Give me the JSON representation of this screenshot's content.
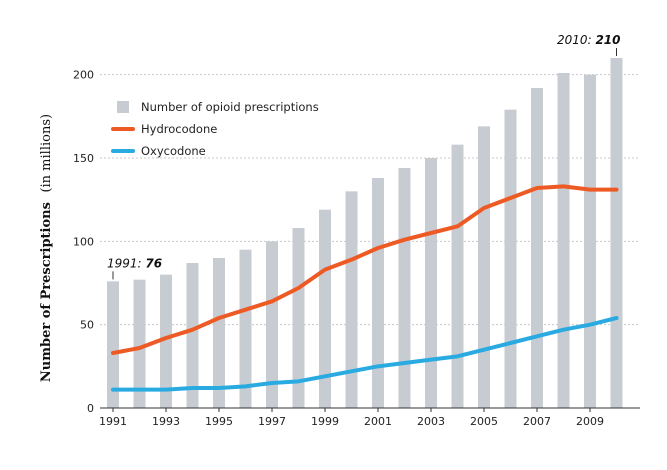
{
  "chart_data": {
    "type": "bar",
    "ylabel": "Number of Prescriptions",
    "ylabel_suffix": "(in millions)",
    "xlabel": "",
    "ylim": [
      0,
      210
    ],
    "yticks": [
      0,
      50,
      100,
      150,
      200
    ],
    "x": [
      1991,
      1992,
      1993,
      1994,
      1995,
      1996,
      1997,
      1998,
      1999,
      2000,
      2001,
      2002,
      2003,
      2004,
      2005,
      2006,
      2007,
      2008,
      2009,
      2010
    ],
    "xtick_labels": [
      "1991",
      "1993",
      "1995",
      "1997",
      "1999",
      "2001",
      "2003",
      "2005",
      "2007",
      "2009"
    ],
    "series": [
      {
        "name": "Number of opioid prescriptions",
        "kind": "bar",
        "color": "#c7ccd3",
        "values": [
          76,
          77,
          80,
          87,
          90,
          95,
          100,
          108,
          119,
          130,
          138,
          144,
          150,
          158,
          169,
          179,
          192,
          201,
          200,
          210
        ]
      },
      {
        "name": "Hydrocodone",
        "kind": "line",
        "color": "#ee5a24",
        "values": [
          33,
          36,
          42,
          47,
          54,
          59,
          64,
          72,
          83,
          89,
          96,
          101,
          105,
          109,
          120,
          126,
          132,
          133,
          131,
          131
        ]
      },
      {
        "name": "Oxycodone",
        "kind": "line",
        "color": "#29abe2",
        "values": [
          11,
          11,
          11,
          12,
          12,
          13,
          15,
          16,
          19,
          22,
          25,
          27,
          29,
          31,
          35,
          39,
          43,
          47,
          50,
          54
        ]
      }
    ],
    "annotations": [
      {
        "year": 1991,
        "prefix": "1991: ",
        "value": "76"
      },
      {
        "year": 2010,
        "prefix": "2010: ",
        "value": "210"
      }
    ],
    "legend": "top-left"
  }
}
